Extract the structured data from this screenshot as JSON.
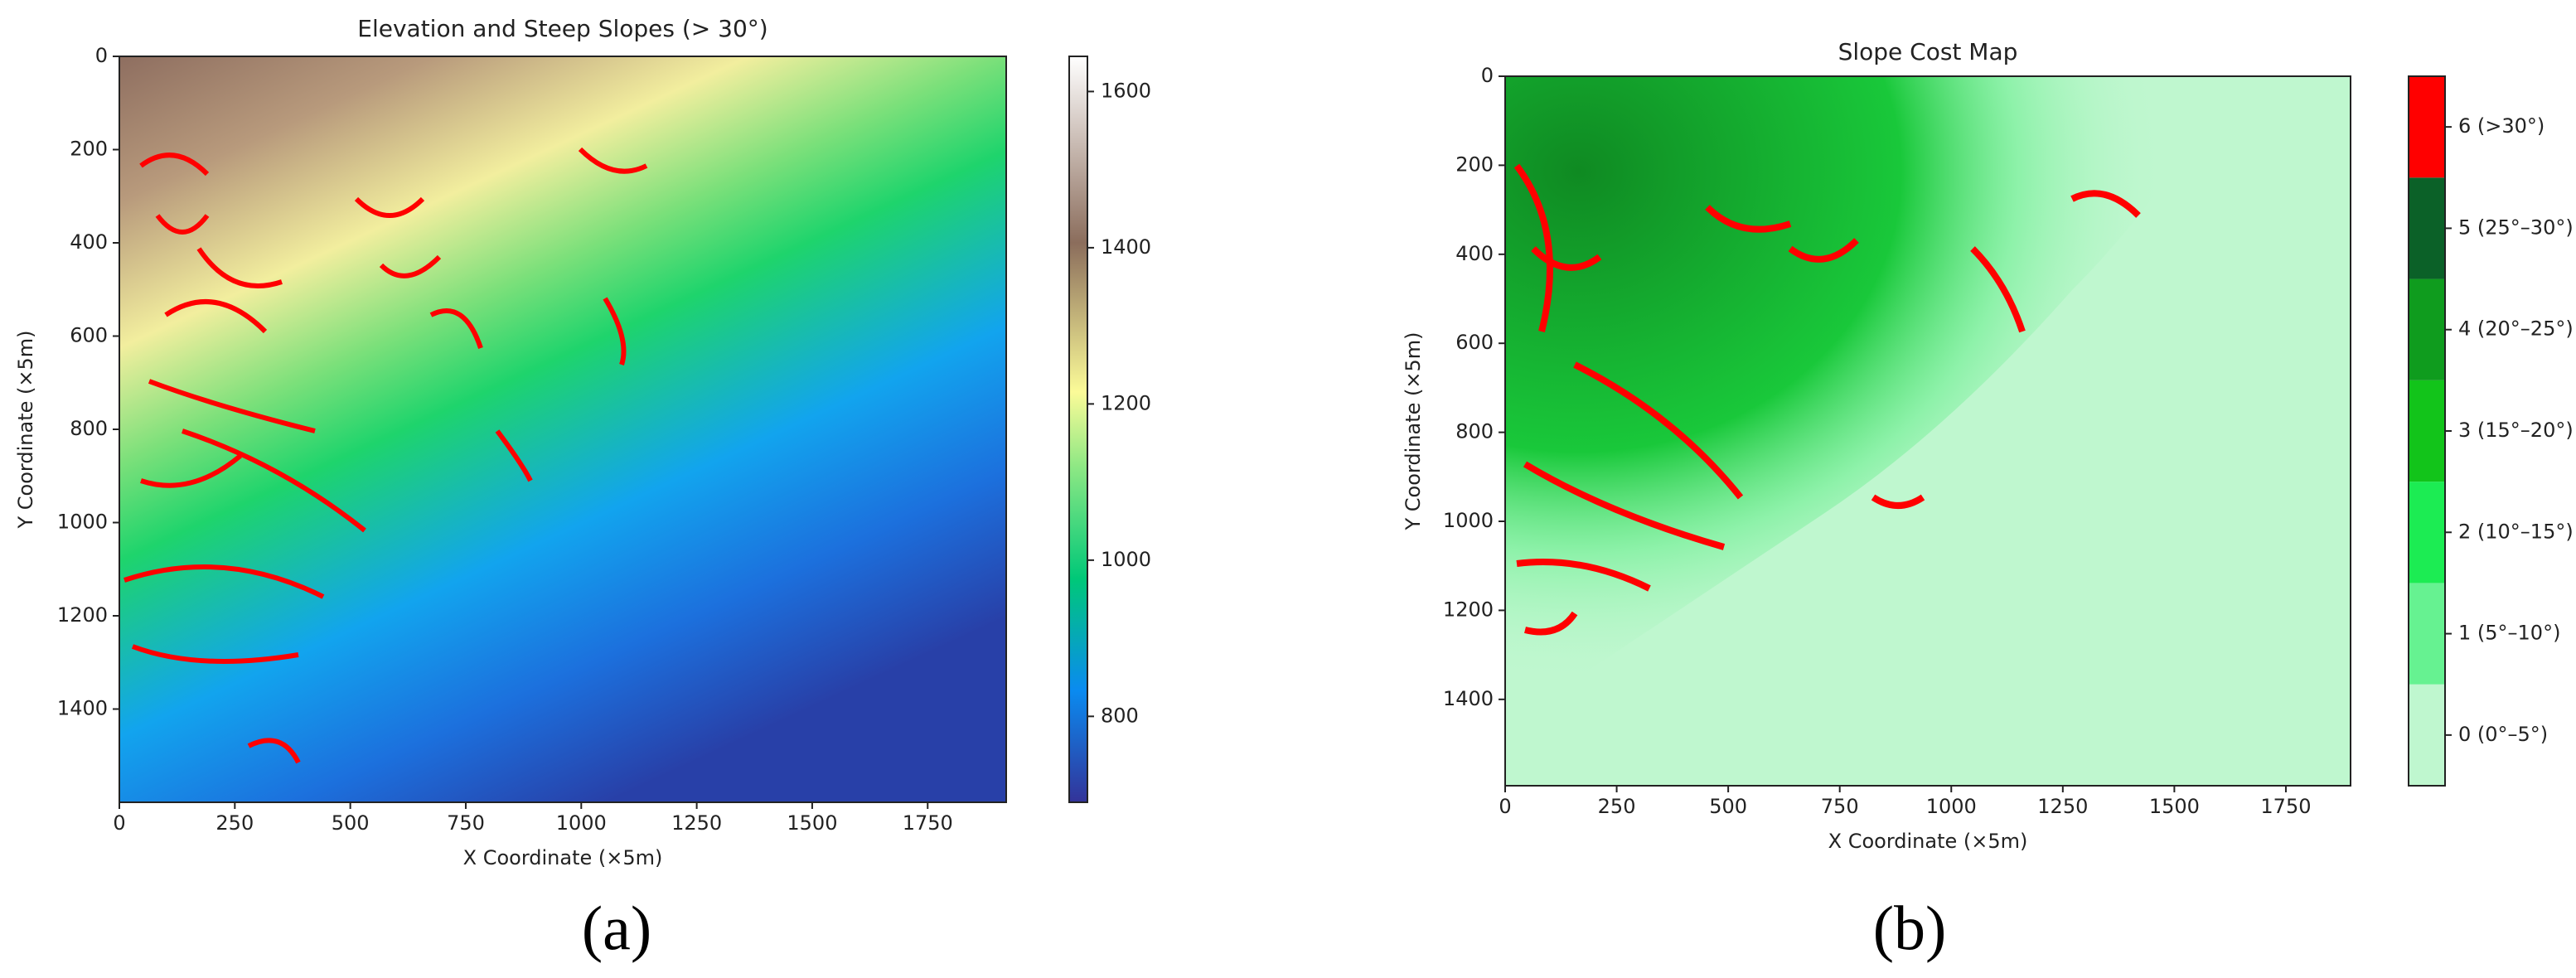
{
  "chart_data": [
    {
      "type": "heatmap",
      "title": "Elevation and Steep Slopes (> 30°)",
      "xlabel": "X Coordinate (×5m)",
      "ylabel": "Y Coordinate (×5m)",
      "xlim": [
        0,
        1920
      ],
      "ylim": [
        0,
        1600
      ],
      "y_inverted": true,
      "xticks": [
        0,
        250,
        500,
        750,
        1000,
        1250,
        1500,
        1750
      ],
      "yticks": [
        0,
        200,
        400,
        600,
        800,
        1000,
        1200,
        1400
      ],
      "colorbar": {
        "colormap": "terrain",
        "lim": [
          690,
          1645
        ],
        "ticks": [
          800,
          1000,
          1200,
          1400,
          1600
        ]
      },
      "panel_label": "(a)"
    },
    {
      "type": "heatmap",
      "title": "Slope Cost Map",
      "xlabel": "X Coordinate (×5m)",
      "ylabel": "Y Coordinate (×5m)",
      "xlim": [
        0,
        1895
      ],
      "ylim": [
        0,
        1594
      ],
      "y_inverted": true,
      "xticks": [
        0,
        250,
        500,
        750,
        1000,
        1250,
        1500,
        1750
      ],
      "yticks": [
        0,
        200,
        400,
        600,
        800,
        1000,
        1200,
        1400
      ],
      "colorbar": {
        "classes": [
          {
            "value": 0,
            "label": "0 (0°–5°)",
            "color": "#bff7cf"
          },
          {
            "value": 1,
            "label": "1 (5°–10°)",
            "color": "#66f291"
          },
          {
            "value": 2,
            "label": "2 (10°–15°)",
            "color": "#1cec53"
          },
          {
            "value": 3,
            "label": "3 (15°–20°)",
            "color": "#12c41a"
          },
          {
            "value": 4,
            "label": "4 (20°–25°)",
            "color": "#0f9c1e"
          },
          {
            "value": 5,
            "label": "5 (25°–30°)",
            "color": "#0b6128"
          },
          {
            "value": 6,
            "label": "6 (>30°)",
            "color": "#ff0000"
          }
        ]
      },
      "panel_label": "(b)"
    }
  ]
}
